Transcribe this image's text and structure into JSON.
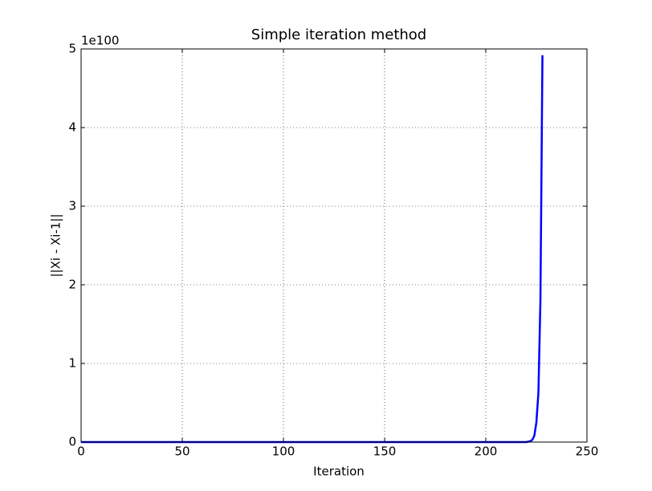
{
  "chart_data": {
    "type": "line",
    "title": "Simple iteration method",
    "x_label": "Iteration",
    "y_label": "||Xi - Xi-1||",
    "y_offset_label": "1e100",
    "x": [
      0,
      50,
      100,
      150,
      200,
      220,
      222,
      223,
      224,
      225,
      226,
      227,
      228
    ],
    "series": [
      {
        "color": "#0000ff",
        "values": [
          0,
          0,
          0,
          0,
          0,
          0,
          0.01,
          0.03,
          0.08,
          0.25,
          0.62,
          1.8,
          4.92
        ]
      }
    ],
    "xlim": [
      0,
      250
    ],
    "xticks": [
      0,
      50,
      100,
      150,
      200,
      250
    ],
    "ylim": [
      0,
      5
    ],
    "yticks": [
      0,
      1,
      2,
      3,
      4,
      5
    ],
    "grid": true
  }
}
